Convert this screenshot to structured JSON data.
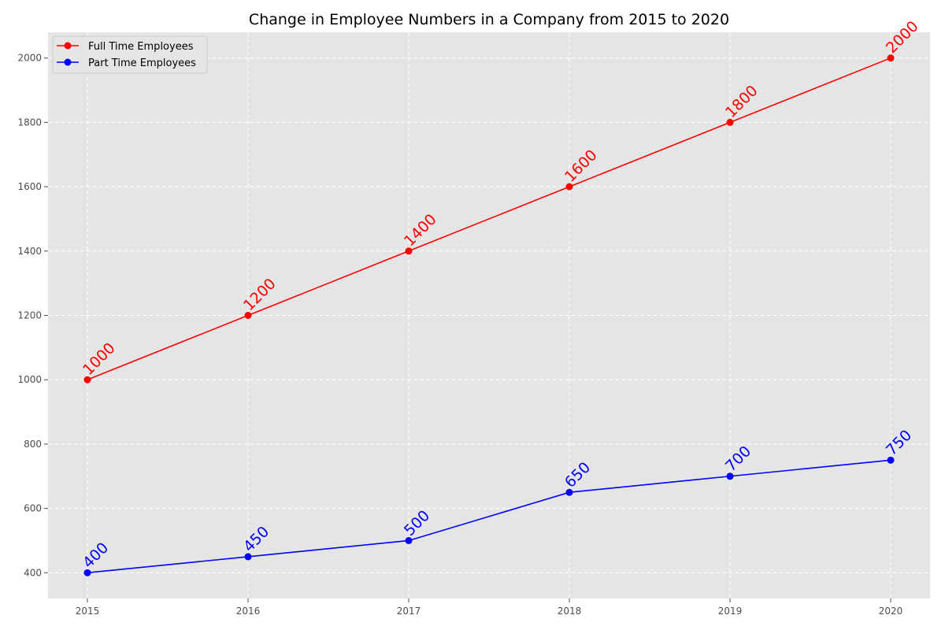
{
  "chart_data": {
    "type": "line",
    "title": "Change in Employee Numbers in a Company from 2015 to 2020",
    "xlabel": "",
    "ylabel": "",
    "x": [
      "2015",
      "2016",
      "2017",
      "2018",
      "2019",
      "2020"
    ],
    "xlim": [
      2014.755,
      2020.245
    ],
    "ylim": [
      320,
      2080
    ],
    "yticks": [
      400,
      600,
      800,
      1000,
      1200,
      1400,
      1600,
      1800,
      2000
    ],
    "grid": true,
    "legend_position": "top-left",
    "series": [
      {
        "name": "Full Time Employees",
        "color": "#ff0000",
        "marker": "circle",
        "values": [
          1000,
          1200,
          1400,
          1600,
          1800,
          2000
        ]
      },
      {
        "name": "Part Time Employees",
        "color": "#0000ff",
        "marker": "circle",
        "values": [
          400,
          450,
          500,
          650,
          700,
          750
        ]
      }
    ],
    "background": "#e5e5e5",
    "grid_color": "#ffffff"
  }
}
